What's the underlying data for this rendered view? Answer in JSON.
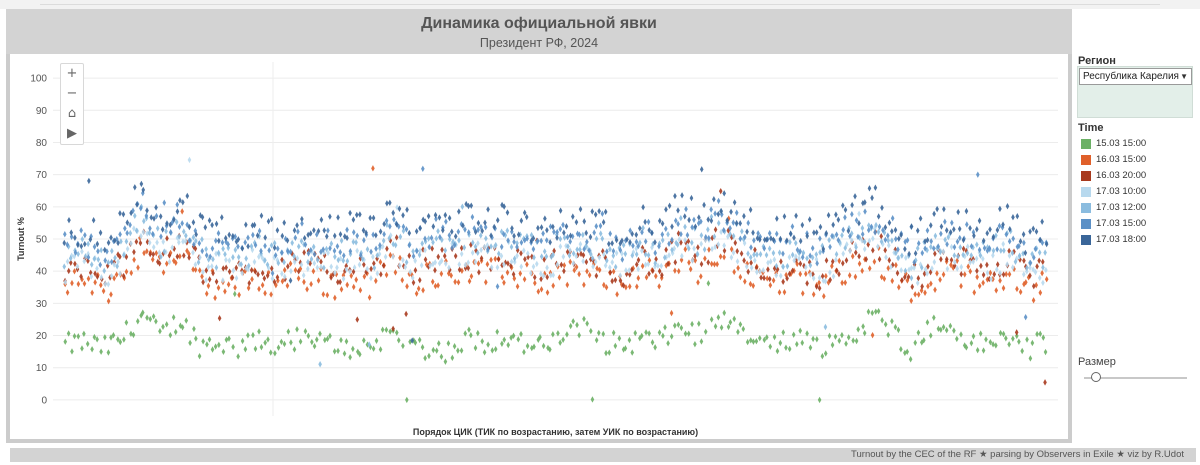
{
  "chart_data": {
    "type": "scatter",
    "title": "Динамика официальной явки",
    "subtitle": "Президент РФ, 2024",
    "xlabel": "Порядок ЦИК (ТИК по возрастанию, затем УИК по возрастанию)",
    "ylabel": "Turnout %",
    "ylim": [
      -5,
      105
    ],
    "yticks": [
      0,
      10,
      20,
      30,
      40,
      50,
      60,
      70,
      80,
      90,
      100
    ],
    "x_count": 300,
    "grid": true,
    "legend_placement": "right",
    "series": [
      {
        "name": "15.03 15:00",
        "color": "#6bb065",
        "trend": [
          17,
          18,
          16,
          19,
          27,
          20,
          25,
          17,
          18,
          16,
          18,
          17,
          19,
          18,
          17,
          16,
          17,
          22,
          17,
          16,
          15,
          19,
          18,
          20,
          17,
          16,
          21,
          22,
          18,
          17,
          19,
          18,
          23,
          20,
          25,
          21,
          18,
          17,
          19,
          16,
          18,
          20,
          26,
          22,
          16,
          23,
          22,
          18,
          17,
          20,
          16,
          18
        ],
        "noise": 3.5
      },
      {
        "name": "16.03 15:00",
        "color": "#e0602a",
        "trend": [
          35,
          37,
          34,
          38,
          48,
          40,
          46,
          37,
          36,
          35,
          38,
          36,
          40,
          37,
          36,
          38,
          36,
          44,
          36,
          40,
          39,
          41,
          39,
          40,
          38,
          37,
          40,
          39,
          38,
          36,
          40,
          37,
          44,
          40,
          46,
          42,
          38,
          36,
          38,
          34,
          38,
          42,
          45,
          40,
          33,
          38,
          40,
          38,
          36,
          40,
          34,
          36
        ],
        "noise": 4.5
      },
      {
        "name": "16.03 20:00",
        "color": "#a83a1e",
        "trend": [
          39,
          41,
          38,
          42,
          53,
          44,
          50,
          41,
          40,
          39,
          42,
          40,
          44,
          41,
          40,
          42,
          40,
          48,
          40,
          44,
          43,
          45,
          43,
          44,
          42,
          41,
          44,
          43,
          42,
          40,
          44,
          41,
          48,
          44,
          50,
          46,
          42,
          40,
          42,
          38,
          42,
          46,
          49,
          44,
          37,
          42,
          44,
          42,
          40,
          44,
          38,
          40
        ],
        "noise": 4.5
      },
      {
        "name": "17.03 10:00",
        "color": "#b8d9ee",
        "trend": [
          40,
          42,
          38,
          43,
          54,
          44,
          51,
          42,
          41,
          40,
          43,
          41,
          44,
          42,
          41,
          43,
          41,
          49,
          41,
          45,
          44,
          46,
          44,
          45,
          43,
          42,
          45,
          44,
          43,
          41,
          45,
          42,
          49,
          45,
          51,
          47,
          43,
          41,
          43,
          39,
          43,
          47,
          50,
          45,
          38,
          43,
          45,
          43,
          41,
          45,
          39,
          41
        ],
        "noise": 4.5
      },
      {
        "name": "17.03 12:00",
        "color": "#8bbcdf",
        "trend": [
          44,
          46,
          42,
          47,
          58,
          48,
          55,
          46,
          45,
          44,
          47,
          45,
          48,
          46,
          45,
          47,
          45,
          53,
          45,
          49,
          48,
          50,
          48,
          49,
          47,
          46,
          49,
          48,
          47,
          45,
          49,
          46,
          53,
          49,
          55,
          51,
          47,
          45,
          47,
          43,
          47,
          51,
          54,
          49,
          42,
          47,
          49,
          47,
          45,
          49,
          43,
          45
        ],
        "noise": 4.5
      },
      {
        "name": "17.03 15:00",
        "color": "#5b90c6",
        "trend": [
          47,
          49,
          45,
          50,
          62,
          51,
          58,
          49,
          48,
          47,
          50,
          48,
          51,
          49,
          48,
          50,
          48,
          56,
          48,
          52,
          51,
          53,
          51,
          52,
          50,
          49,
          52,
          51,
          50,
          48,
          52,
          49,
          56,
          52,
          58,
          54,
          50,
          48,
          50,
          46,
          50,
          54,
          57,
          52,
          45,
          50,
          52,
          50,
          48,
          52,
          46,
          48
        ],
        "noise": 4.5
      },
      {
        "name": "17.03 18:00",
        "color": "#3a6699",
        "trend": [
          51,
          53,
          49,
          55,
          66,
          56,
          63,
          53,
          52,
          51,
          54,
          52,
          56,
          53,
          52,
          54,
          52,
          61,
          52,
          56,
          55,
          57,
          55,
          56,
          54,
          53,
          56,
          55,
          54,
          52,
          56,
          53,
          61,
          56,
          63,
          58,
          54,
          52,
          54,
          50,
          54,
          58,
          62,
          56,
          49,
          54,
          56,
          54,
          52,
          56,
          50,
          52
        ],
        "noise": 5
      }
    ]
  },
  "zoom": {
    "in": "+",
    "out": "−",
    "home": "⌂",
    "play": "▶"
  },
  "filters": {
    "region_title": "Регион",
    "region_value": "Республика Карелия",
    "time_title": "Time",
    "size_title": "Размер",
    "size_value": 0.1
  },
  "legend": [
    {
      "label": "15.03 15:00",
      "color": "#6bb065"
    },
    {
      "label": "16.03 15:00",
      "color": "#e0602a"
    },
    {
      "label": "16.03 20:00",
      "color": "#a83a1e"
    },
    {
      "label": "17.03 10:00",
      "color": "#b8d9ee"
    },
    {
      "label": "17.03 12:00",
      "color": "#8bbcdf"
    },
    {
      "label": "17.03 15:00",
      "color": "#5b90c6"
    },
    {
      "label": "17.03 18:00",
      "color": "#3a6699"
    }
  ],
  "footer": "Turnout by the CEC of the RF ★ parsing by Observers in Exile ★ viz by R.Udot"
}
